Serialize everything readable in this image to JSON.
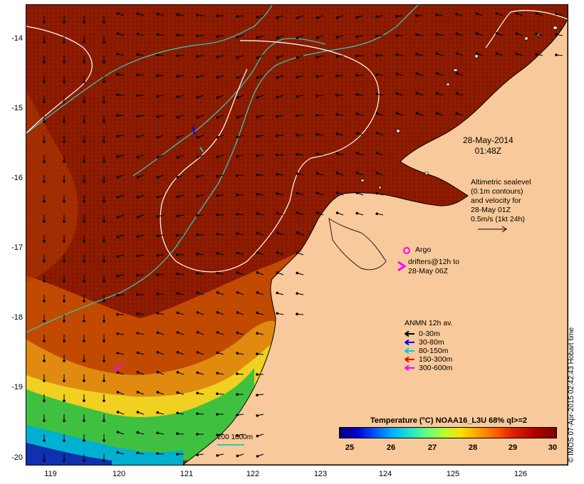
{
  "map": {
    "lat_labels": [
      "-14",
      "-15",
      "-16",
      "-17",
      "-18",
      "-19",
      "-20"
    ],
    "lon_labels": [
      "119",
      "120",
      "121",
      "122",
      "123",
      "124",
      "125",
      "126"
    ],
    "date_line1": "28-May-2014",
    "date_line2": "01:48Z",
    "altimetry_lines": [
      "Altimetric sealevel",
      "(0.1m contours)",
      "and velocity for",
      "28-May 01Z",
      "0.5m/s (1kt 24h)"
    ],
    "argo_label": "Argo",
    "drifter_lines": [
      "drifters@12h to",
      "28-May 06Z"
    ],
    "anmn_title": "ANMN 12h av.",
    "anmn_items": [
      {
        "label": "0-30m",
        "color": "#000000"
      },
      {
        "label": "30-80m",
        "color": "#0000ff"
      },
      {
        "label": "80-150m",
        "color": "#00d0d0"
      },
      {
        "label": "150-300m",
        "color": "#ff0000"
      },
      {
        "label": "300-600m",
        "color": "#ff00ff"
      }
    ],
    "colorbar_title": "Temperature (°C) NOAA16_L3U 68% ql>=2",
    "colorbar_ticks": [
      "25",
      "26",
      "27",
      "28",
      "29",
      "30"
    ],
    "scale_label": "200  1000m",
    "credit": "© IMOS 07-Apr-2015 02:42:43 Hobart time",
    "colors": {
      "land": "#f8c99a",
      "sst_warm": "#8b1a00",
      "sst_mid": "#c24a00",
      "sst_orange": "#e08a10",
      "sst_yellow": "#f0d020",
      "sst_green": "#40c040",
      "sst_cyan": "#00b0d0",
      "sst_blue": "#1030b0",
      "bathy_contour": "#34c6b4",
      "sealevel_contour": "#ffffff"
    }
  }
}
